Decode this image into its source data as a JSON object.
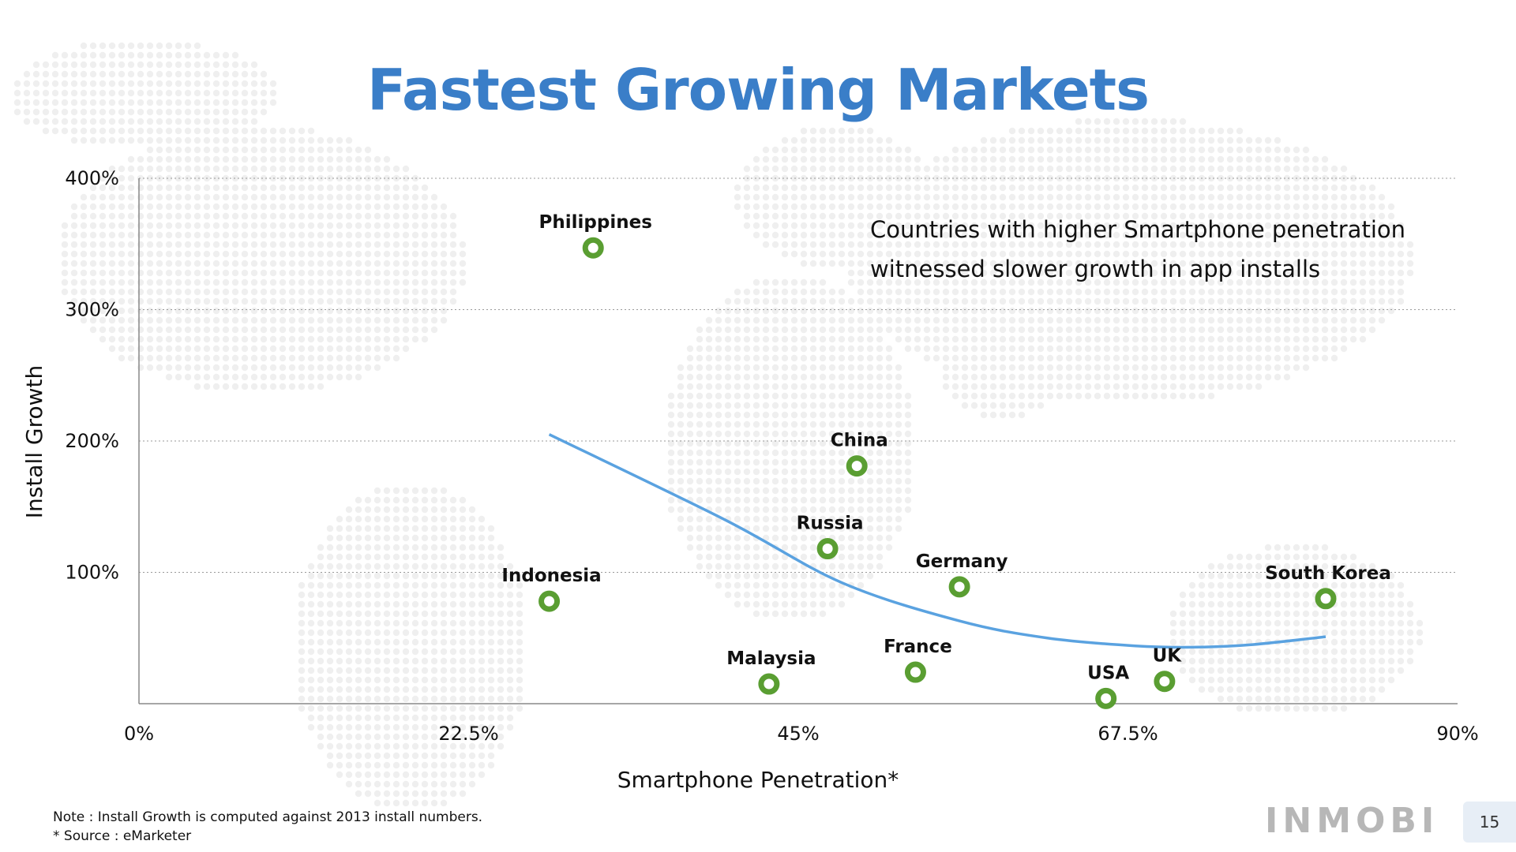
{
  "title": "Fastest Growing Markets",
  "annotation": {
    "line1": "Countries with higher Smartphone penetration",
    "line2": "witnessed slower growth in app installs"
  },
  "footnotes": {
    "note": "Note : Install Growth is computed against 2013 install numbers.",
    "source": "* Source : eMarketer"
  },
  "logo": "INMOBI",
  "page_number": "15",
  "colors": {
    "title": "#3a7ec8",
    "marker": "#5a9e32",
    "trend": "#5aa2e0",
    "grid": "#999999",
    "map_dots": "#efefef"
  },
  "chart_data": {
    "type": "scatter",
    "title": "Fastest Growing Markets",
    "xlabel": "Smartphone Penetration*",
    "ylabel": "Install Growth",
    "xlim": [
      0,
      90
    ],
    "ylim": [
      0,
      400
    ],
    "x_ticks": [
      "0%",
      "22.5%",
      "45%",
      "67.5%",
      "90%"
    ],
    "x_tick_values": [
      0,
      22.5,
      45,
      67.5,
      90
    ],
    "y_ticks": [
      "100%",
      "200%",
      "300%",
      "400%"
    ],
    "y_tick_values": [
      100,
      200,
      300,
      400
    ],
    "grid": "horizontal dotted",
    "points": [
      {
        "label": "Philippines",
        "x": 31,
        "y": 347
      },
      {
        "label": "Indonesia",
        "x": 28,
        "y": 78
      },
      {
        "label": "China",
        "x": 49,
        "y": 181
      },
      {
        "label": "Russia",
        "x": 47,
        "y": 118
      },
      {
        "label": "Germany",
        "x": 56,
        "y": 89
      },
      {
        "label": "Malaysia",
        "x": 43,
        "y": 15
      },
      {
        "label": "France",
        "x": 53,
        "y": 24
      },
      {
        "label": "USA",
        "x": 66,
        "y": 4
      },
      {
        "label": "UK",
        "x": 70,
        "y": 17
      },
      {
        "label": "South Korea",
        "x": 81,
        "y": 80
      }
    ],
    "trendline": {
      "type": "polynomial",
      "points": [
        [
          28,
          205
        ],
        [
          40,
          140
        ],
        [
          48,
          92
        ],
        [
          56,
          63
        ],
        [
          62,
          50
        ],
        [
          68,
          44
        ],
        [
          72,
          43
        ],
        [
          76,
          45
        ],
        [
          81,
          51
        ]
      ]
    }
  }
}
